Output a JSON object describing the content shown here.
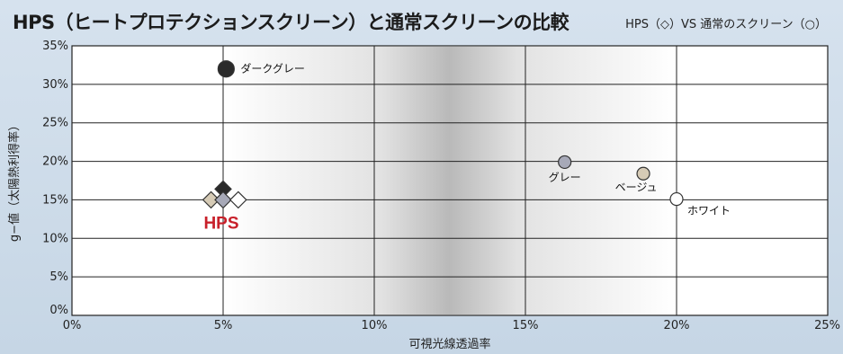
{
  "chart_data": {
    "type": "scatter",
    "title": "HPS（ヒートプロテクションスクリーン）と通常スクリーンの比較",
    "legend_note": "HPS（◇）VS 通常のスクリーン（○）",
    "xlabel": "可視光線透過率",
    "ylabel": "g−値（太陽熱利得率）",
    "xlim": [
      0,
      25
    ],
    "ylim": [
      0,
      35
    ],
    "x_ticks": [
      {
        "value": 0,
        "label": "0%"
      },
      {
        "value": 5,
        "label": "5%"
      },
      {
        "value": 10,
        "label": "10%"
      },
      {
        "value": 15,
        "label": "15%"
      },
      {
        "value": 20,
        "label": "20%"
      },
      {
        "value": 25,
        "label": "25%"
      }
    ],
    "y_ticks": [
      {
        "value": 0,
        "label": "0%"
      },
      {
        "value": 5,
        "label": "5%"
      },
      {
        "value": 10,
        "label": "10%"
      },
      {
        "value": 15,
        "label": "15%"
      },
      {
        "value": 20,
        "label": "20%"
      },
      {
        "value": 25,
        "label": "25%"
      },
      {
        "value": 30,
        "label": "30%"
      },
      {
        "value": 35,
        "label": "35%"
      }
    ],
    "grid": true,
    "series": [
      {
        "marker": "circle",
        "points": [
          {
            "x": 5.1,
            "y": 32.0,
            "label": "ダークグレー",
            "color": "#2a2a2a"
          },
          {
            "x": 16.3,
            "y": 19.9,
            "label": "グレー",
            "color": "#a7a9b8"
          },
          {
            "x": 18.9,
            "y": 18.4,
            "label": "ベージュ",
            "color": "#d6cbb6"
          },
          {
            "x": 20.0,
            "y": 15.1,
            "label": "ホワイト",
            "color": "#ffffff"
          }
        ]
      },
      {
        "marker": "diamond",
        "group_label": "HPS",
        "group_label_color": "#c8202a",
        "points": [
          {
            "x": 5.0,
            "y": 16.4,
            "color": "#2a2a2a"
          },
          {
            "x": 4.6,
            "y": 15.0,
            "color": "#d6cbb6"
          },
          {
            "x": 5.0,
            "y": 15.0,
            "color": "#a7a9b8"
          },
          {
            "x": 5.5,
            "y": 15.0,
            "color": "#ffffff"
          }
        ]
      }
    ]
  }
}
